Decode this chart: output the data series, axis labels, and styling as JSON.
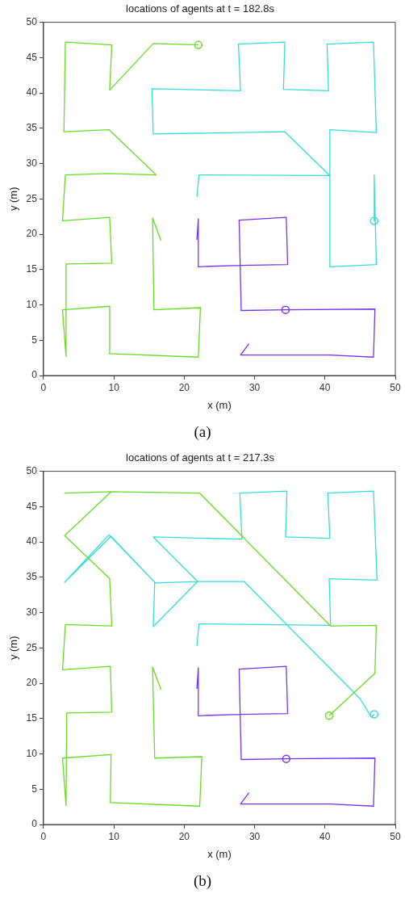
{
  "chart_data": [
    {
      "type": "line",
      "title": "locations of agents at t = 182.8s",
      "xlabel": "x (m)",
      "ylabel": "y (m)",
      "xlim": [
        0,
        50
      ],
      "ylim": [
        0,
        50
      ],
      "xticks": [
        0,
        10,
        20,
        30,
        40,
        50
      ],
      "yticks": [
        0,
        5,
        10,
        15,
        20,
        25,
        30,
        35,
        40,
        45,
        50
      ],
      "grid": false,
      "legend": false,
      "annotations": [
        "(a)"
      ],
      "series": [
        {
          "type": "line",
          "color": "#66dd22",
          "marker": "none",
          "x": [
            16.7,
            15.5,
            15.7,
            22.3,
            22.0,
            9.3,
            9.4,
            2.7,
            3.2,
            3.2,
            9.7,
            9.4,
            2.7,
            3.1,
            9.2,
            16.0,
            9.3,
            2.9,
            3.1,
            9.7,
            9.4,
            15.6,
            22.0
          ],
          "values": [
            19.1,
            22.3,
            9.3,
            9.6,
            2.6,
            3.1,
            9.8,
            9.3,
            2.7,
            15.8,
            15.9,
            22.4,
            21.9,
            28.4,
            28.6,
            28.4,
            34.8,
            34.5,
            47.2,
            46.8,
            40.4,
            47.0,
            46.8
          ]
        },
        {
          "type": "line",
          "color": "#33dddd",
          "marker": "none",
          "x": [
            21.8,
            22.1,
            40.7,
            34.3,
            15.6,
            15.4,
            28.0,
            27.7,
            34.3,
            34.1,
            40.5,
            40.3,
            46.9,
            47.3,
            40.7,
            40.7,
            47.3,
            47.0,
            47.0
          ],
          "values": [
            25.3,
            28.4,
            28.3,
            34.5,
            34.2,
            40.6,
            40.3,
            46.9,
            47.2,
            40.5,
            40.3,
            46.9,
            47.2,
            34.4,
            34.8,
            15.4,
            15.7,
            28.4,
            21.9
          ]
        },
        {
          "type": "line",
          "color": "#7733ee",
          "marker": "none",
          "x": [
            21.8,
            22.0,
            22.0,
            28.0,
            34.7,
            34.5,
            27.8,
            28.1,
            34.4,
            47.1,
            46.9,
            40.7,
            28.0,
            29.2
          ],
          "values": [
            19.2,
            22.2,
            15.4,
            15.6,
            15.7,
            22.4,
            22.0,
            9.2,
            9.3,
            9.4,
            2.6,
            2.9,
            2.9,
            4.5
          ]
        },
        {
          "type": "scatter",
          "color": "#66dd22",
          "marker": "circle",
          "x": [
            22.0
          ],
          "values": [
            46.8
          ]
        },
        {
          "type": "scatter",
          "color": "#33dddd",
          "marker": "circle",
          "x": [
            47.0
          ],
          "values": [
            21.9
          ]
        },
        {
          "type": "scatter",
          "color": "#7733ee",
          "marker": "circle",
          "x": [
            34.4
          ],
          "values": [
            9.3
          ]
        }
      ]
    },
    {
      "type": "line",
      "title": "locations of agents at t = 217.3s",
      "xlabel": "x (m)",
      "ylabel": "y (m)",
      "xlim": [
        0,
        50
      ],
      "ylim": [
        0,
        50
      ],
      "xticks": [
        0,
        10,
        20,
        30,
        40,
        50
      ],
      "yticks": [
        0,
        5,
        10,
        15,
        20,
        25,
        30,
        35,
        40,
        45,
        50
      ],
      "grid": false,
      "legend": false,
      "annotations": [
        "(b)"
      ],
      "series": [
        {
          "type": "line",
          "color": "#66dd22",
          "marker": "none",
          "x": [
            16.7,
            15.5,
            15.8,
            22.5,
            22.2,
            9.5,
            9.6,
            2.7,
            3.2,
            3.3,
            9.7,
            9.5,
            2.7,
            3.1,
            9.7,
            9.4,
            3.0,
            9.6,
            3.0,
            9.6,
            22.2,
            40.8,
            47.3,
            47.1,
            40.6
          ],
          "values": [
            19.1,
            22.3,
            9.4,
            9.6,
            2.6,
            3.1,
            9.9,
            9.4,
            2.7,
            15.8,
            15.9,
            22.4,
            21.9,
            28.3,
            28.1,
            34.8,
            40.9,
            47.1,
            46.9,
            47.1,
            46.9,
            28.1,
            28.2,
            21.4,
            15.4
          ]
        },
        {
          "type": "line",
          "color": "#33dddd",
          "marker": "none",
          "x": [
            21.8,
            22.1,
            40.8,
            40.6,
            47.4,
            46.9,
            40.4,
            40.7,
            34.4,
            34.6,
            27.9,
            28.2,
            15.6,
            21.9,
            15.6,
            15.8,
            9.6,
            3.0,
            9.3,
            15.9,
            21.9,
            28.5,
            45.0,
            46.6,
            47.0
          ],
          "values": [
            25.3,
            28.4,
            28.2,
            34.8,
            34.6,
            47.2,
            46.9,
            40.5,
            40.7,
            47.2,
            46.9,
            40.4,
            40.7,
            34.4,
            28.0,
            34.3,
            40.8,
            34.3,
            41.0,
            34.2,
            34.4,
            34.4,
            17.8,
            15.2,
            15.6
          ]
        },
        {
          "type": "line",
          "color": "#7733ee",
          "marker": "none",
          "x": [
            21.8,
            22.0,
            22.0,
            28.0,
            34.7,
            34.5,
            27.8,
            28.1,
            34.4,
            47.1,
            46.9,
            40.7,
            28.0,
            29.2
          ],
          "values": [
            19.2,
            22.2,
            15.4,
            15.6,
            15.7,
            22.4,
            22.0,
            9.2,
            9.3,
            9.4,
            2.6,
            2.9,
            2.9,
            4.5
          ]
        },
        {
          "type": "scatter",
          "color": "#66dd22",
          "marker": "circle",
          "x": [
            40.6
          ],
          "values": [
            15.4
          ]
        },
        {
          "type": "scatter",
          "color": "#33dddd",
          "marker": "circle",
          "x": [
            47.0
          ],
          "values": [
            15.6
          ]
        },
        {
          "type": "scatter",
          "color": "#7733ee",
          "marker": "circle",
          "x": [
            34.5
          ],
          "values": [
            9.3
          ]
        }
      ]
    }
  ]
}
